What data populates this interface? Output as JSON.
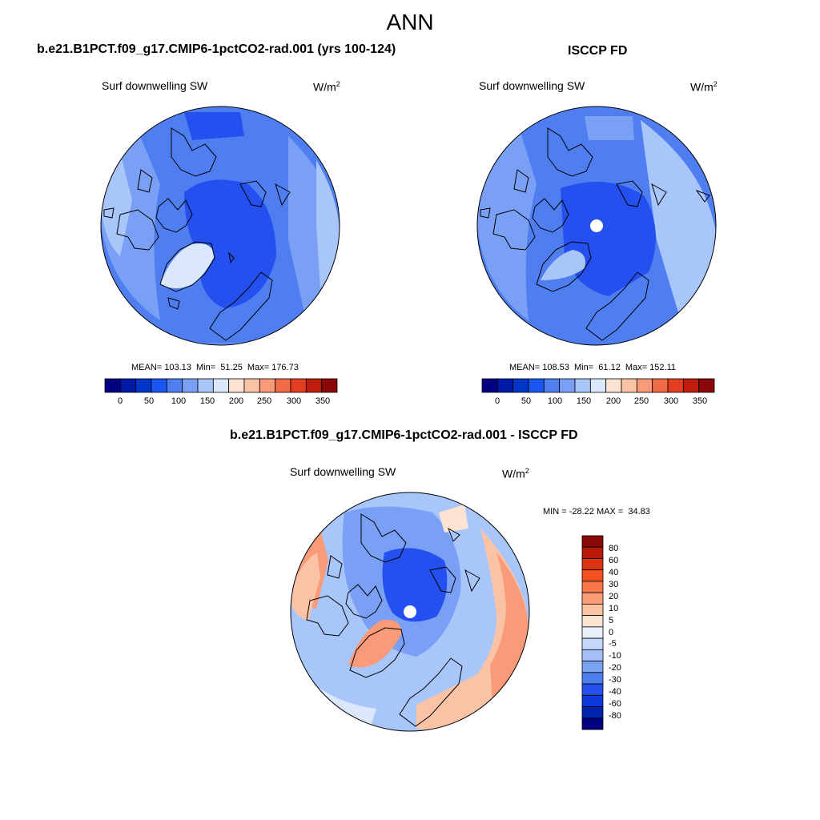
{
  "title": "ANN",
  "panels": [
    {
      "title": "b.e21.B1PCT.f09_g17.CMIP6-1pctCO2-rad.001 (yrs 100-124)",
      "variable": "Surf downwelling SW",
      "units_base": "W/m",
      "units_exp": "2",
      "stats": "MEAN= 103.13  Min=  51.25  Max= 176.73"
    },
    {
      "title": "ISCCP FD",
      "variable": "Surf downwelling SW",
      "units_base": "W/m",
      "units_exp": "2",
      "stats": "MEAN= 108.53  Min=  61.12  Max= 152.11"
    },
    {
      "title": "b.e21.B1PCT.f09_g17.CMIP6-1pctCO2-rad.001 - ISCCP FD",
      "variable": "Surf downwelling SW",
      "units_base": "W/m",
      "units_exp": "2",
      "stats": "MIN = -28.22 MAX =  34.83"
    }
  ],
  "colorbar_abs": {
    "colors": [
      "#000080",
      "#0019a6",
      "#0036c8",
      "#1a56f0",
      "#4f7ef0",
      "#7aa0f5",
      "#a9c6fb",
      "#dbe8fb",
      "#fde3d2",
      "#fbc3a5",
      "#f99a78",
      "#f26b46",
      "#e43d1f",
      "#bf1c0c",
      "#8a0808"
    ],
    "tick_labels": [
      "0",
      "50",
      "100",
      "150",
      "200",
      "250",
      "300",
      "350"
    ]
  },
  "colorbar_diff": {
    "colors": [
      "#8a0808",
      "#b51a08",
      "#dc3312",
      "#f5501f",
      "#f8774a",
      "#f99e78",
      "#fbc3a5",
      "#fde3d2",
      "#e8f0fb",
      "#c4d8f8",
      "#a4c0f6",
      "#7ca2f2",
      "#4f7ef0",
      "#2350ee",
      "#0b39d8",
      "#0024b0",
      "#000080"
    ],
    "tick_labels": [
      "80",
      "60",
      "40",
      "30",
      "20",
      "10",
      "5",
      "0",
      "-5",
      "-10",
      "-20",
      "-30",
      "-40",
      "-60",
      "-80"
    ]
  },
  "map_colors": {
    "deep_blue": "#2350ee",
    "blue": "#4f7ef0",
    "mid_blue": "#7aa0f5",
    "light_blue": "#a9c6fb",
    "pale_blue": "#dbe8fb",
    "pale_orange": "#fde3d2",
    "light_orange": "#fbc3a5",
    "orange": "#f99a78",
    "coast": "#000000"
  }
}
